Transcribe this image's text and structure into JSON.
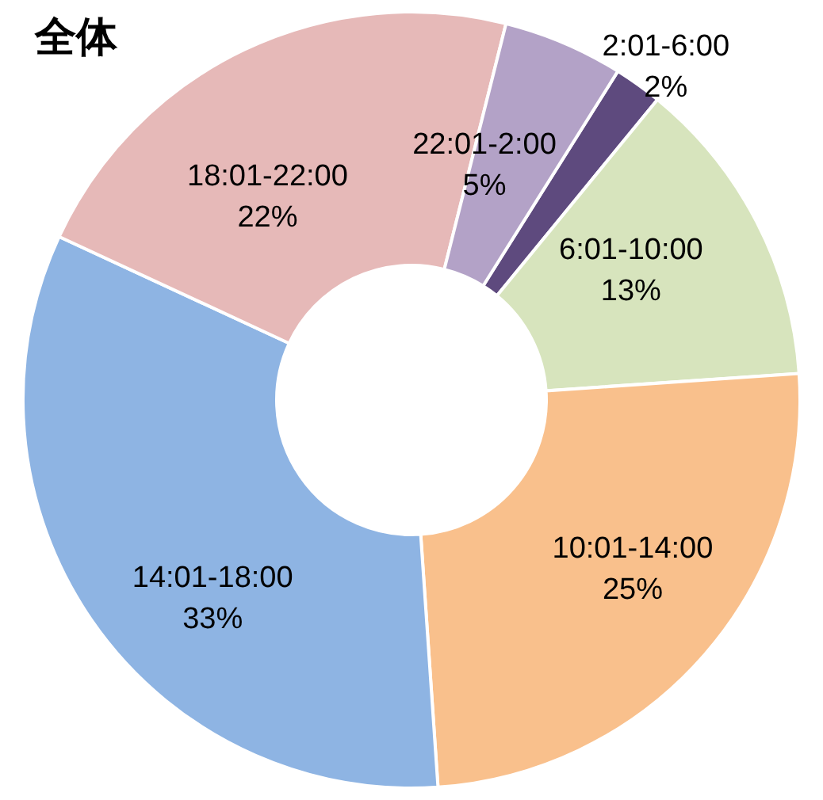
{
  "chart_data": {
    "type": "donut",
    "title": "全体",
    "categories": [
      "2:01-6:00",
      "6:01-10:00",
      "10:01-14:00",
      "14:01-18:00",
      "18:01-22:00",
      "22:01-2:00"
    ],
    "values": [
      2,
      13,
      25,
      33,
      22,
      5
    ],
    "value_labels": [
      "2%",
      "13%",
      "25%",
      "33%",
      "22%",
      "5%"
    ],
    "colors": [
      "#5e4a7e",
      "#d7e4bd",
      "#f9c08c",
      "#8eb4e3",
      "#e6b9b8",
      "#b3a2c7"
    ]
  }
}
